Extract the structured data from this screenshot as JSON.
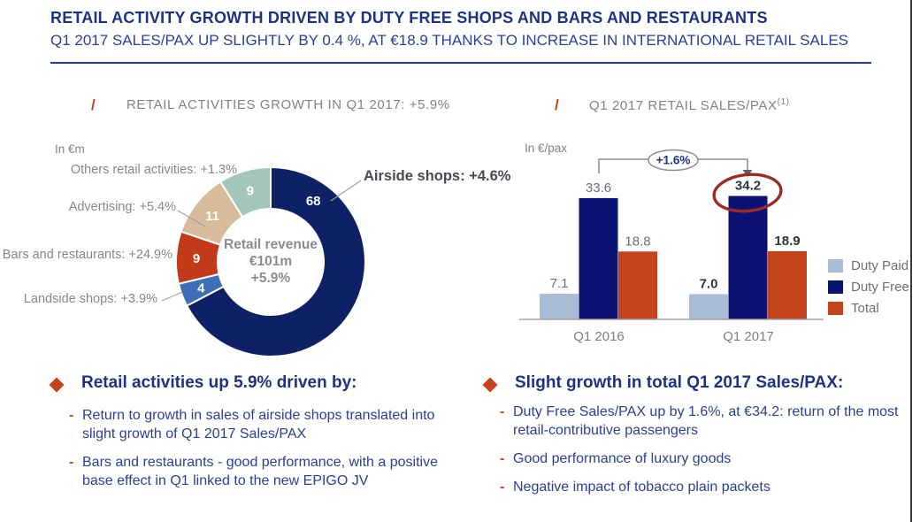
{
  "slide": {
    "title": "RETAIL ACTIVITY GROWTH DRIVEN BY DUTY FREE SHOPS AND BARS AND RESTAURANTS",
    "subtitle": "Q1 2017 SALES/PAX UP SLIGHTLY BY 0.4 %, AT €18.9 THANKS TO INCREASE IN INTERNATIONAL RETAIL SALES",
    "section_marker": "/",
    "bullet_marker": "-"
  },
  "colors": {
    "title_navy": "#1e3282",
    "body_navy": "#2b4094",
    "accent_red": "#c5431a",
    "gray_text": "#808285",
    "highlight_circle_red": "#9e2a25"
  },
  "chart_data": [
    {
      "type": "pie",
      "subtype": "donut",
      "title": "RETAIL ACTIVITIES GROWTH IN Q1 2017: +5.9%",
      "unit": "In €m",
      "total": 101,
      "center_label": [
        "Retail revenue",
        "€101m",
        "+5.9%"
      ],
      "slices": [
        {
          "label": "Airside shops",
          "growth": "+4.6%",
          "value": 68,
          "color": "#0e2166",
          "label_angle": 35,
          "emphasis": true
        },
        {
          "label": "Landside shops",
          "growth": "+3.9%",
          "value": 4,
          "color": "#3e6eb5"
        },
        {
          "label": "Bars and restaurants",
          "growth": "+24.9%",
          "value": 9,
          "color": "#c23a17"
        },
        {
          "label": "Advertising",
          "growth": "+5.4%",
          "value": 11,
          "color": "#d8bb9a"
        },
        {
          "label": "Others retail activities",
          "growth": "+1.3%",
          "value": 9,
          "color": "#a3c6b8"
        }
      ]
    },
    {
      "type": "bar",
      "title": "Q1 2017 RETAIL SALES/PAX",
      "title_sup": "(1)",
      "unit": "In €/pax",
      "categories": [
        "Q1 2016",
        "Q1 2017"
      ],
      "series": [
        {
          "name": "Duty Paid",
          "values": [
            7.1,
            7.0
          ],
          "color": "#a9bcd6"
        },
        {
          "name": "Duty Free",
          "values": [
            33.6,
            34.2
          ],
          "color": "#0c1272"
        },
        {
          "name": "Total",
          "values": [
            18.8,
            18.9
          ],
          "color": "#c5431a"
        }
      ],
      "annotation_label": "+1.6%",
      "highlight": "Duty Free Q1 2017 value circled",
      "legend_position": "right",
      "ylim": [
        0,
        40
      ],
      "grid": false
    }
  ],
  "sections": {
    "left": {
      "heading": "Retail activities up 5.9% driven by:",
      "bullets": [
        "Return to growth in sales of airside shops translated into slight growth of Q1 2017 Sales/PAX",
        "Bars and restaurants - good performance, with a positive base effect in Q1 linked to the new EPIGO JV"
      ]
    },
    "right": {
      "heading": "Slight growth in total Q1 2017 Sales/PAX:",
      "bullets": [
        "Duty Free Sales/PAX up by 1.6%, at €34.2: return of the most retail-contributive passengers",
        "Good performance of luxury goods",
        "Negative impact of tobacco plain packets"
      ]
    }
  }
}
